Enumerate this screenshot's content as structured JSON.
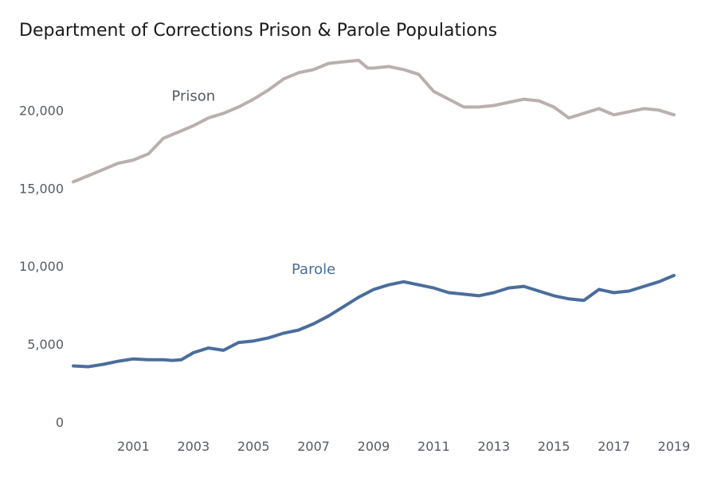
{
  "chart_data": {
    "type": "line",
    "title": "Department of Corrections Prison & Parole Populations",
    "xlabel": "",
    "ylabel": "",
    "xlim": [
      1999.0,
      2019.0
    ],
    "ylim": [
      0,
      24000
    ],
    "x_ticks": [
      "2001",
      "2003",
      "2005",
      "2007",
      "2009",
      "2011",
      "2013",
      "2015",
      "2017",
      "2019"
    ],
    "y_ticks": [
      "0",
      "5,000",
      "10,000",
      "15,000",
      "20,000"
    ],
    "series": [
      {
        "name": "Prison",
        "label": "Prison",
        "color": "#b9b0ae",
        "label_color": "#555b61",
        "label_at": [
          2003.0,
          20600
        ],
        "points": [
          [
            1999.0,
            15400
          ],
          [
            1999.5,
            15800
          ],
          [
            2000.0,
            16200
          ],
          [
            2000.5,
            16600
          ],
          [
            2001.0,
            16800
          ],
          [
            2001.5,
            17200
          ],
          [
            2002.0,
            18200
          ],
          [
            2002.5,
            18600
          ],
          [
            2003.0,
            19000
          ],
          [
            2003.5,
            19500
          ],
          [
            2004.0,
            19800
          ],
          [
            2004.5,
            20200
          ],
          [
            2005.0,
            20700
          ],
          [
            2005.5,
            21300
          ],
          [
            2006.0,
            22000
          ],
          [
            2006.5,
            22400
          ],
          [
            2007.0,
            22600
          ],
          [
            2007.5,
            23000
          ],
          [
            2008.0,
            23100
          ],
          [
            2008.5,
            23200
          ],
          [
            2008.8,
            22700
          ],
          [
            2009.0,
            22700
          ],
          [
            2009.5,
            22800
          ],
          [
            2010.0,
            22600
          ],
          [
            2010.5,
            22300
          ],
          [
            2011.0,
            21200
          ],
          [
            2011.5,
            20700
          ],
          [
            2012.0,
            20200
          ],
          [
            2012.5,
            20200
          ],
          [
            2013.0,
            20300
          ],
          [
            2013.5,
            20500
          ],
          [
            2014.0,
            20700
          ],
          [
            2014.5,
            20600
          ],
          [
            2015.0,
            20200
          ],
          [
            2015.5,
            19500
          ],
          [
            2016.0,
            19800
          ],
          [
            2016.5,
            20100
          ],
          [
            2017.0,
            19700
          ],
          [
            2017.5,
            19900
          ],
          [
            2018.0,
            20100
          ],
          [
            2018.5,
            20000
          ],
          [
            2019.0,
            19700
          ]
        ]
      },
      {
        "name": "Parole",
        "label": "Parole",
        "color": "#4a6d9c",
        "label_color": "#4a6d9c",
        "label_at": [
          2007.0,
          9500
        ],
        "points": [
          [
            1999.0,
            3600
          ],
          [
            1999.5,
            3550
          ],
          [
            2000.0,
            3700
          ],
          [
            2000.5,
            3900
          ],
          [
            2001.0,
            4050
          ],
          [
            2001.5,
            4000
          ],
          [
            2002.0,
            4000
          ],
          [
            2002.3,
            3950
          ],
          [
            2002.6,
            4000
          ],
          [
            2003.0,
            4450
          ],
          [
            2003.5,
            4750
          ],
          [
            2004.0,
            4600
          ],
          [
            2004.5,
            5100
          ],
          [
            2005.0,
            5200
          ],
          [
            2005.5,
            5400
          ],
          [
            2006.0,
            5700
          ],
          [
            2006.5,
            5900
          ],
          [
            2007.0,
            6300
          ],
          [
            2007.5,
            6800
          ],
          [
            2008.0,
            7400
          ],
          [
            2008.5,
            8000
          ],
          [
            2009.0,
            8500
          ],
          [
            2009.5,
            8800
          ],
          [
            2010.0,
            9000
          ],
          [
            2010.5,
            8800
          ],
          [
            2011.0,
            8600
          ],
          [
            2011.5,
            8300
          ],
          [
            2012.0,
            8200
          ],
          [
            2012.5,
            8100
          ],
          [
            2013.0,
            8300
          ],
          [
            2013.5,
            8600
          ],
          [
            2014.0,
            8700
          ],
          [
            2014.5,
            8400
          ],
          [
            2015.0,
            8100
          ],
          [
            2015.5,
            7900
          ],
          [
            2016.0,
            7800
          ],
          [
            2016.5,
            8500
          ],
          [
            2017.0,
            8300
          ],
          [
            2017.5,
            8400
          ],
          [
            2018.0,
            8700
          ],
          [
            2018.5,
            9000
          ],
          [
            2019.0,
            9400
          ]
        ]
      }
    ]
  }
}
